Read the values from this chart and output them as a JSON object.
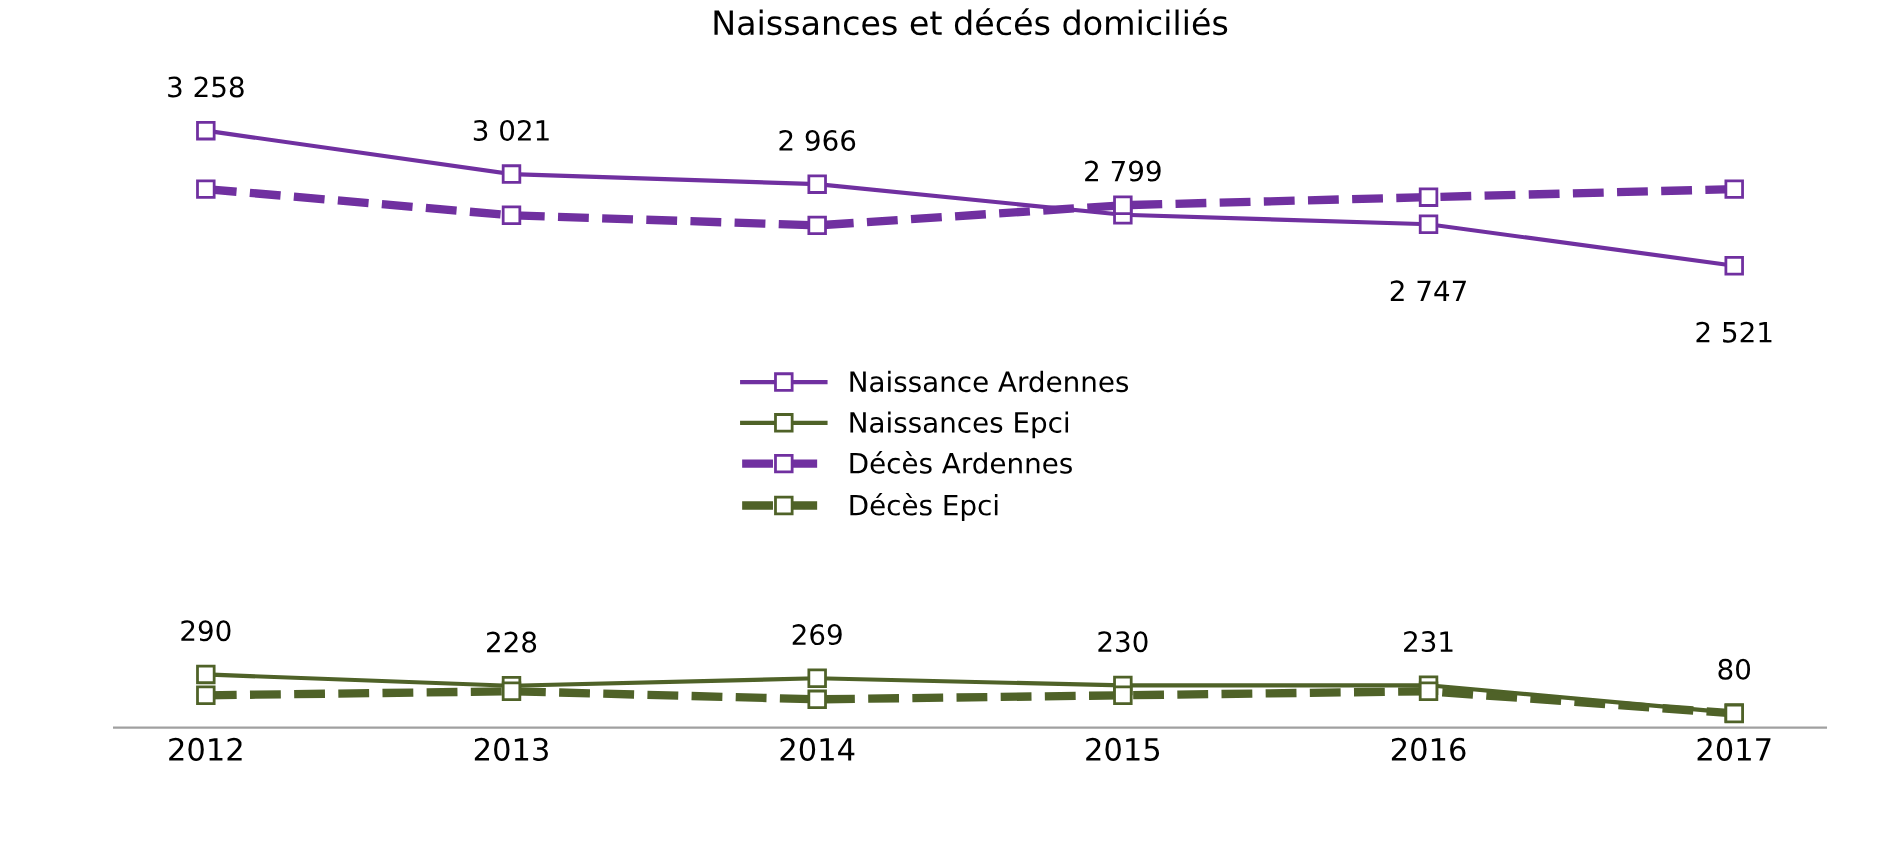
{
  "chart_data": {
    "type": "line",
    "title": "Naissances et décés domiciliés",
    "categories": [
      "2012",
      "2013",
      "2014",
      "2015",
      "2016",
      "2017"
    ],
    "series": [
      {
        "name": "Naissance Ardennes",
        "color": "#7030a0",
        "line_style": "solid",
        "values": [
          3258,
          3021,
          2966,
          2799,
          2747,
          2521
        ],
        "value_labels": [
          "3 258",
          "3 021",
          "2 966",
          "2 799",
          "2 747",
          "2 521"
        ]
      },
      {
        "name": "Naissances Epci",
        "color": "#4f6228",
        "line_style": "solid",
        "values": [
          290,
          228,
          269,
          230,
          231,
          80
        ],
        "value_labels": [
          "290",
          "228",
          "269",
          "230",
          "231",
          "80"
        ]
      },
      {
        "name": "Décès Ardennes",
        "color": "#7030a0",
        "line_style": "dashed",
        "values": [
          2939,
          2796,
          2741,
          2851,
          2895,
          2939
        ]
      },
      {
        "name": "Décès Epci",
        "color": "#4f6228",
        "line_style": "dashed",
        "values": [
          176,
          198,
          154,
          176,
          198,
          77
        ]
      }
    ],
    "tick_labels": "x",
    "marker": "square",
    "grid": false,
    "legend": "center"
  }
}
